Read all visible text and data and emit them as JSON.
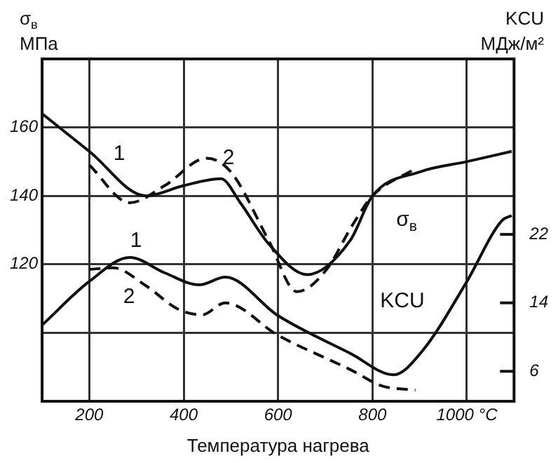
{
  "chart_data": {
    "type": "line",
    "xlabel": "Температура нагрева",
    "ylabel": "σ$_{в}$\nМПа",
    "y2label": "KCU\nМДж/м²",
    "xlim": [
      100,
      1100
    ],
    "xticks": [
      200,
      400,
      600,
      800,
      {
        "value": 1000,
        "label": "1000 °C"
      }
    ],
    "ylim": [
      80,
      180
    ],
    "yticks": [
      {
        "value": 100,
        "label": null
      },
      120,
      140,
      160
    ],
    "y2lim": [
      2.5,
      42.5
    ],
    "y2ticks": [
      6,
      14,
      22
    ],
    "grid": true,
    "marker": "none",
    "series": [
      {
        "color": "#111111",
        "line_style": "solid",
        "x": [
          100,
          200,
          320,
          400,
          479,
          520,
          580,
          662,
          753,
          800,
          900,
          1000,
          1095
        ],
        "values": [
          164,
          153,
          140,
          143,
          145,
          138,
          126,
          117,
          127,
          140,
          147,
          150,
          153
        ]
      },
      {
        "color": "#111111",
        "line_style": "dashed",
        "x": [
          200,
          286,
          360,
          448,
          500,
          580,
          640,
          700,
          760,
          800,
          891
        ],
        "values": [
          149,
          138,
          143,
          151,
          147,
          127,
          112,
          118,
          132,
          140,
          148
        ]
      },
      {
        "color": "#111111",
        "line_style": "solid",
        "axis": "y2",
        "x": [
          100,
          200,
          286,
          360,
          433,
          488,
          600,
          753,
          845,
          906,
          998,
          1074,
          1095
        ],
        "values": [
          11.4,
          16.5,
          19.3,
          17.5,
          16.1,
          17,
          12.5,
          8.1,
          5.6,
          8.4,
          16.3,
          23.6,
          24.2
        ]
      },
      {
        "color": "#111111",
        "line_style": "dashed",
        "axis": "y2",
        "x": [
          200,
          250,
          320,
          387,
          439,
          488,
          600,
          753,
          820,
          891
        ],
        "values": [
          17.9,
          18.1,
          16,
          13.3,
          12.6,
          14,
          10.2,
          6.2,
          4.3,
          3.8
        ]
      }
    ],
    "annotations": [
      "1",
      "2",
      "σ$_{в}$",
      "1",
      "2",
      "KCU"
    ]
  }
}
